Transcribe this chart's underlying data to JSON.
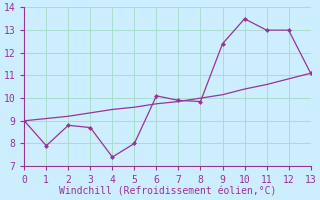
{
  "xlabel": "Windchill (Refroidissement éolien,°C)",
  "bg_color": "#cceeff",
  "grid_color": "#aaddcc",
  "line_color": "#993399",
  "tick_color": "#993399",
  "spine_color": "#993399",
  "x_data": [
    0,
    1,
    2,
    3,
    4,
    5,
    6,
    7,
    8,
    9,
    10,
    11,
    12,
    13
  ],
  "y_jagged": [
    9.0,
    7.9,
    8.8,
    8.7,
    7.4,
    8.0,
    10.1,
    9.9,
    9.85,
    12.4,
    13.5,
    13.0,
    13.0,
    11.1
  ],
  "y_smooth": [
    9.0,
    9.1,
    9.2,
    9.35,
    9.5,
    9.6,
    9.75,
    9.85,
    10.0,
    10.15,
    10.4,
    10.6,
    10.85,
    11.1
  ],
  "xlim": [
    0,
    13
  ],
  "ylim": [
    7.0,
    14.0
  ],
  "yticks": [
    7,
    8,
    9,
    10,
    11,
    12,
    13,
    14
  ],
  "xticks": [
    0,
    1,
    2,
    3,
    4,
    5,
    6,
    7,
    8,
    9,
    10,
    11,
    12,
    13
  ],
  "xlabel_fontsize": 7,
  "tick_fontsize": 7
}
